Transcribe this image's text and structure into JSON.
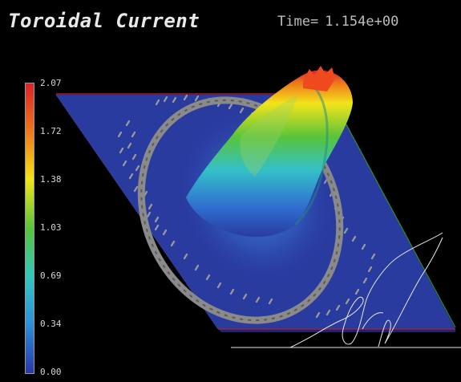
{
  "title": "Toroidal Current",
  "time": {
    "label": "Time=",
    "value": "1.154e+00"
  },
  "colorbar": {
    "ticks": [
      "2.07",
      "1.72",
      "1.38",
      "1.03",
      "0.69",
      "0.34",
      "0.00"
    ],
    "stops": [
      "#d9232a",
      "#ef7a1b",
      "#f3e41a",
      "#58c43a",
      "#32c6c0",
      "#2f8fd8",
      "#2838a8"
    ]
  },
  "colors": {
    "plane": "#2a3ba0",
    "ring": "#8a8a8a",
    "edge_red": "#a0203a",
    "edge_green": "#2e8c3c",
    "trace": "#e8e8e8"
  }
}
